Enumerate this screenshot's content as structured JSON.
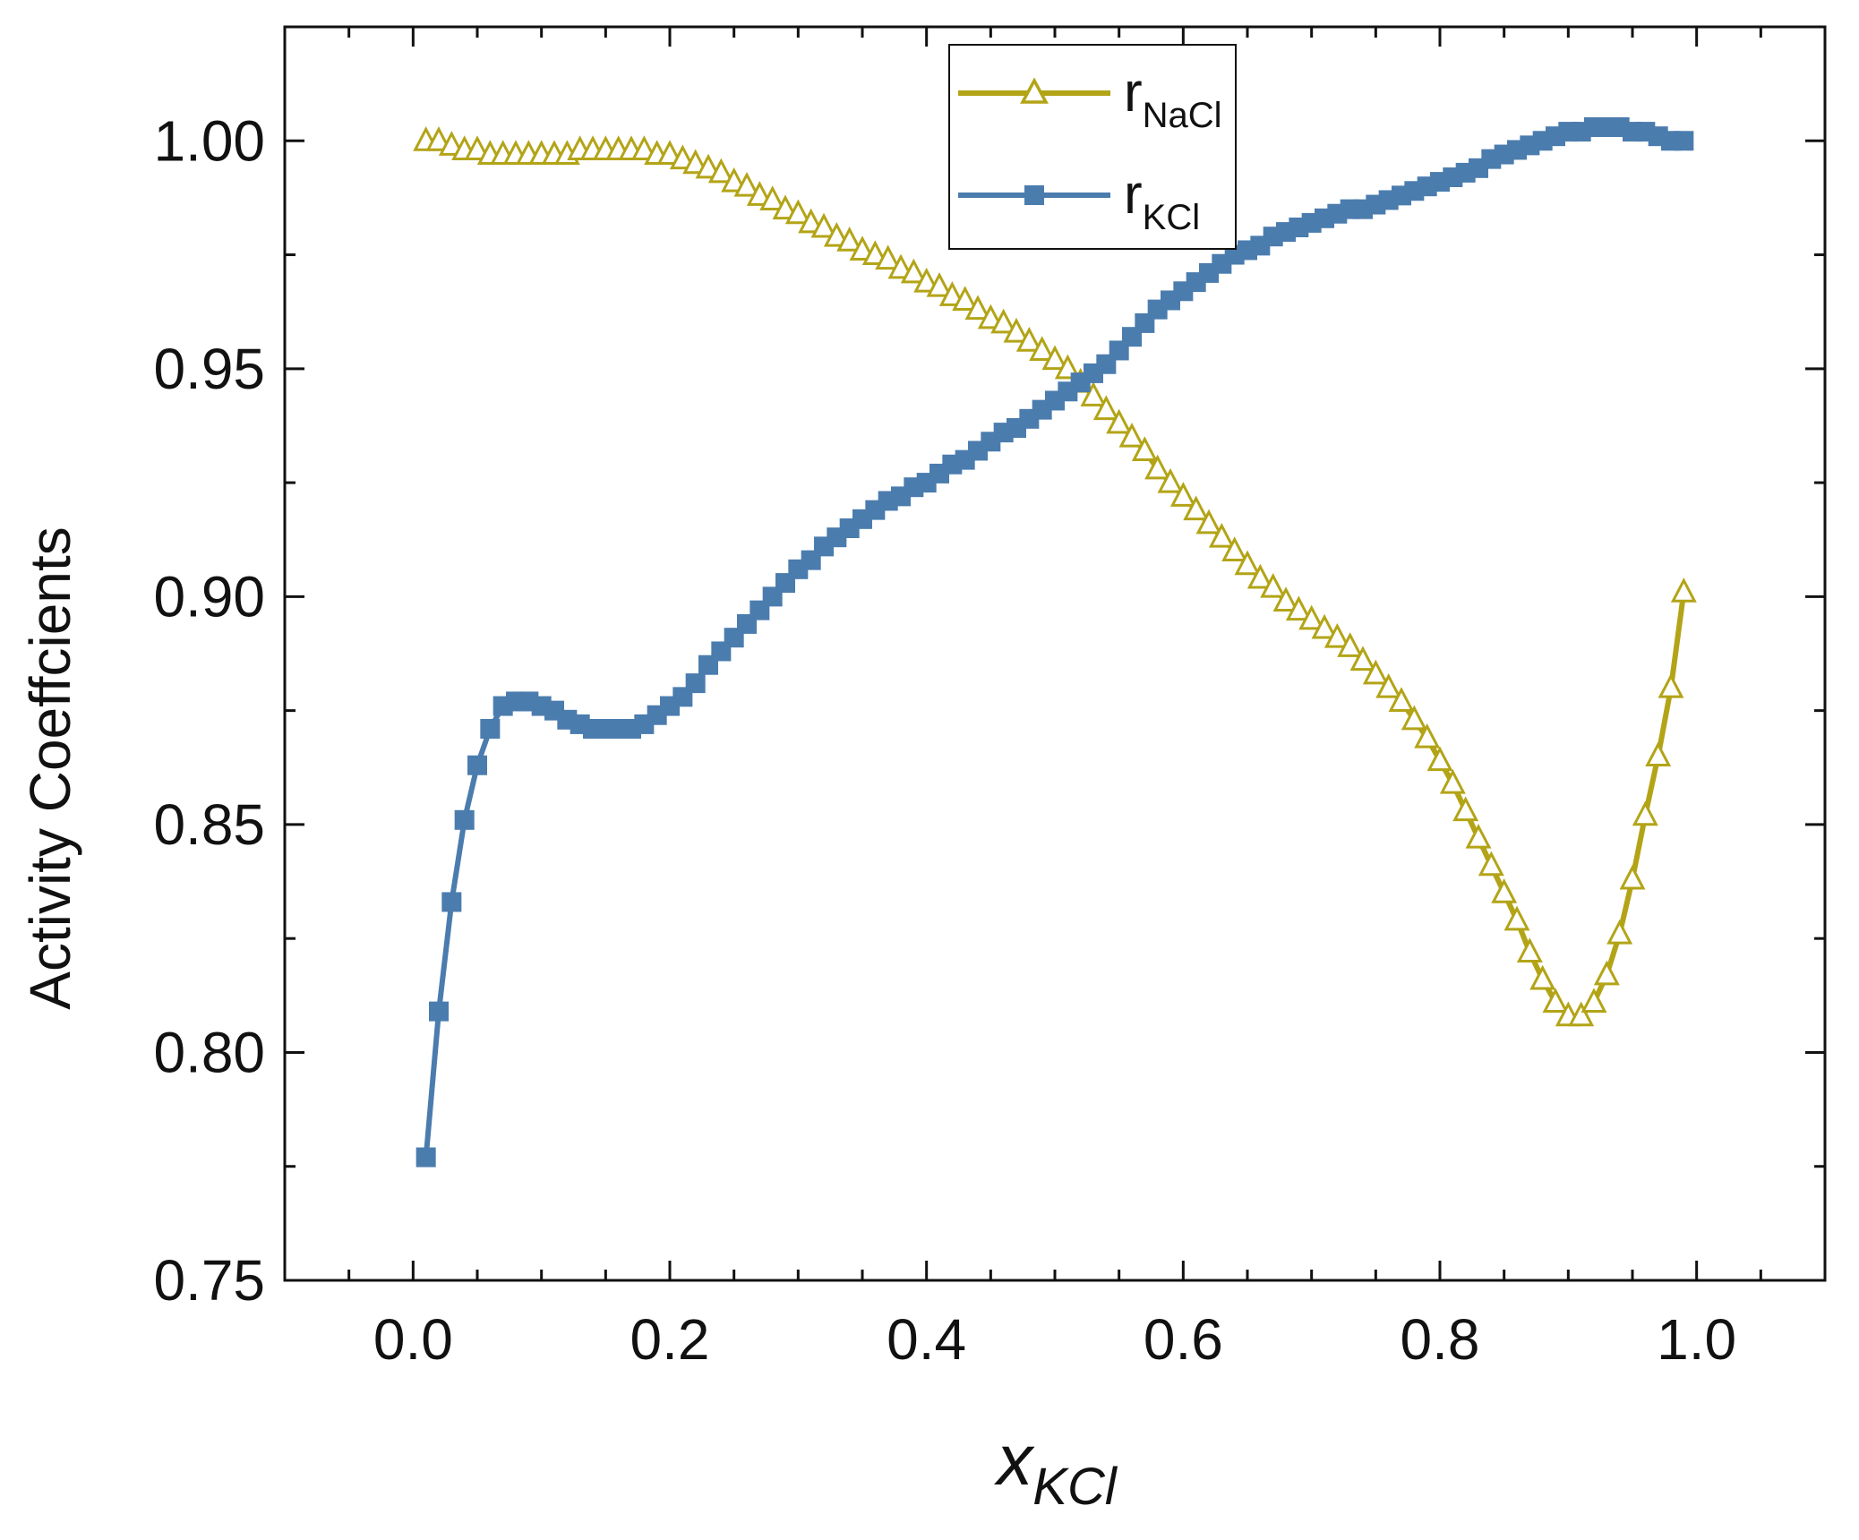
{
  "chart_data": {
    "type": "line",
    "title": "",
    "ylabel": "Activity Coeffcients",
    "xlabel": {
      "main": "x",
      "sub": "KCl"
    },
    "xlim": [
      -0.1,
      1.1
    ],
    "ylim": [
      0.75,
      1.025
    ],
    "x_ticks": [
      0.0,
      0.2,
      0.4,
      0.6,
      0.8,
      1.0
    ],
    "x_tick_labels": [
      "0.0",
      "0.2",
      "0.4",
      "0.6",
      "0.8",
      "1.0"
    ],
    "y_ticks": [
      0.75,
      0.8,
      0.85,
      0.9,
      0.95,
      1.0
    ],
    "y_tick_labels": [
      "0.75",
      "0.80",
      "0.85",
      "0.90",
      "0.95",
      "1.00"
    ],
    "legend_position": "top-center",
    "series": [
      {
        "name": "r_NaCl",
        "label_main": "r",
        "label_sub": "NaCl",
        "marker": "open-triangle",
        "color": "#b3a417",
        "x": [
          0.01,
          0.02,
          0.03,
          0.04,
          0.05,
          0.06,
          0.07,
          0.08,
          0.09,
          0.1,
          0.11,
          0.12,
          0.13,
          0.14,
          0.15,
          0.16,
          0.17,
          0.18,
          0.19,
          0.2,
          0.21,
          0.22,
          0.23,
          0.24,
          0.25,
          0.26,
          0.27,
          0.28,
          0.29,
          0.3,
          0.31,
          0.32,
          0.33,
          0.34,
          0.35,
          0.36,
          0.37,
          0.38,
          0.39,
          0.4,
          0.41,
          0.42,
          0.43,
          0.44,
          0.45,
          0.46,
          0.47,
          0.48,
          0.49,
          0.5,
          0.51,
          0.52,
          0.53,
          0.54,
          0.55,
          0.56,
          0.57,
          0.58,
          0.59,
          0.6,
          0.61,
          0.62,
          0.63,
          0.64,
          0.65,
          0.66,
          0.67,
          0.68,
          0.69,
          0.7,
          0.71,
          0.72,
          0.73,
          0.74,
          0.75,
          0.76,
          0.77,
          0.78,
          0.79,
          0.8,
          0.81,
          0.82,
          0.83,
          0.84,
          0.85,
          0.86,
          0.87,
          0.88,
          0.89,
          0.9,
          0.91,
          0.92,
          0.93,
          0.94,
          0.95,
          0.96,
          0.97,
          0.98,
          0.99
        ],
        "y": [
          1.0,
          1.0,
          0.999,
          0.998,
          0.998,
          0.997,
          0.997,
          0.997,
          0.997,
          0.997,
          0.997,
          0.997,
          0.998,
          0.998,
          0.998,
          0.998,
          0.998,
          0.998,
          0.997,
          0.997,
          0.996,
          0.995,
          0.994,
          0.993,
          0.991,
          0.99,
          0.988,
          0.987,
          0.985,
          0.984,
          0.982,
          0.981,
          0.979,
          0.978,
          0.976,
          0.975,
          0.974,
          0.972,
          0.971,
          0.969,
          0.968,
          0.966,
          0.965,
          0.963,
          0.961,
          0.96,
          0.958,
          0.956,
          0.954,
          0.952,
          0.95,
          0.947,
          0.944,
          0.941,
          0.938,
          0.935,
          0.932,
          0.928,
          0.925,
          0.922,
          0.919,
          0.916,
          0.913,
          0.91,
          0.907,
          0.904,
          0.902,
          0.899,
          0.897,
          0.895,
          0.893,
          0.891,
          0.889,
          0.886,
          0.883,
          0.88,
          0.877,
          0.873,
          0.869,
          0.864,
          0.859,
          0.853,
          0.847,
          0.841,
          0.835,
          0.829,
          0.822,
          0.816,
          0.811,
          0.808,
          0.808,
          0.811,
          0.817,
          0.826,
          0.838,
          0.852,
          0.865,
          0.88,
          0.901
        ]
      },
      {
        "name": "r_KCl",
        "label_main": "r",
        "label_sub": "KCl",
        "marker": "filled-square",
        "color": "#4b7cae",
        "x": [
          0.01,
          0.02,
          0.03,
          0.04,
          0.05,
          0.06,
          0.07,
          0.08,
          0.09,
          0.1,
          0.11,
          0.12,
          0.13,
          0.14,
          0.15,
          0.16,
          0.17,
          0.18,
          0.19,
          0.2,
          0.21,
          0.22,
          0.23,
          0.24,
          0.25,
          0.26,
          0.27,
          0.28,
          0.29,
          0.3,
          0.31,
          0.32,
          0.33,
          0.34,
          0.35,
          0.36,
          0.37,
          0.38,
          0.39,
          0.4,
          0.41,
          0.42,
          0.43,
          0.44,
          0.45,
          0.46,
          0.47,
          0.48,
          0.49,
          0.5,
          0.51,
          0.52,
          0.53,
          0.54,
          0.55,
          0.56,
          0.57,
          0.58,
          0.59,
          0.6,
          0.61,
          0.62,
          0.63,
          0.64,
          0.65,
          0.66,
          0.67,
          0.68,
          0.69,
          0.7,
          0.71,
          0.72,
          0.73,
          0.74,
          0.75,
          0.76,
          0.77,
          0.78,
          0.79,
          0.8,
          0.81,
          0.82,
          0.83,
          0.84,
          0.85,
          0.86,
          0.87,
          0.88,
          0.89,
          0.9,
          0.91,
          0.92,
          0.93,
          0.94,
          0.95,
          0.96,
          0.97,
          0.98,
          0.99
        ],
        "y": [
          0.777,
          0.809,
          0.833,
          0.851,
          0.863,
          0.871,
          0.876,
          0.877,
          0.877,
          0.876,
          0.875,
          0.873,
          0.872,
          0.871,
          0.871,
          0.871,
          0.871,
          0.872,
          0.874,
          0.876,
          0.878,
          0.881,
          0.885,
          0.888,
          0.891,
          0.894,
          0.897,
          0.9,
          0.903,
          0.906,
          0.908,
          0.911,
          0.913,
          0.915,
          0.917,
          0.919,
          0.921,
          0.922,
          0.924,
          0.925,
          0.927,
          0.929,
          0.93,
          0.932,
          0.934,
          0.936,
          0.937,
          0.939,
          0.941,
          0.943,
          0.945,
          0.947,
          0.949,
          0.951,
          0.954,
          0.957,
          0.96,
          0.963,
          0.965,
          0.967,
          0.969,
          0.971,
          0.973,
          0.975,
          0.976,
          0.977,
          0.979,
          0.98,
          0.981,
          0.982,
          0.983,
          0.984,
          0.985,
          0.985,
          0.986,
          0.987,
          0.988,
          0.989,
          0.99,
          0.991,
          0.992,
          0.993,
          0.994,
          0.996,
          0.997,
          0.998,
          0.999,
          1.0,
          1.001,
          1.002,
          1.002,
          1.003,
          1.003,
          1.003,
          1.002,
          1.002,
          1.001,
          1.0,
          1.0
        ]
      }
    ]
  }
}
